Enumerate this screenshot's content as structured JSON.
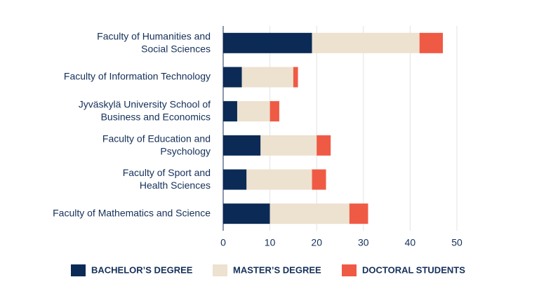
{
  "chart_data": {
    "type": "bar_stacked_horizontal",
    "categories": [
      "Faculty of Humanities and\nSocial Sciences",
      "Faculty of Information Technology",
      "Jyväskylä University School of\nBusiness and Economics",
      "Faculty of Education and\nPsychology",
      "Faculty of Sport and\nHealth Sciences",
      "Faculty of Mathematics and Science"
    ],
    "series": [
      {
        "name": "BACHELOR’S DEGREE",
        "color": "#0b2a55",
        "values": [
          19,
          4,
          3,
          8,
          5,
          10
        ]
      },
      {
        "name": "MASTER’S DEGREE",
        "color": "#ede1cf",
        "values": [
          23,
          11,
          7,
          12,
          14,
          17
        ]
      },
      {
        "name": "DOCTORAL STUDENTS",
        "color": "#ef5a45",
        "values": [
          5,
          1,
          2,
          3,
          3,
          4
        ]
      }
    ],
    "xlim": [
      0,
      50
    ],
    "xticks": [
      0,
      10,
      20,
      30,
      40,
      50
    ],
    "grid": true,
    "legend": "bottom"
  }
}
